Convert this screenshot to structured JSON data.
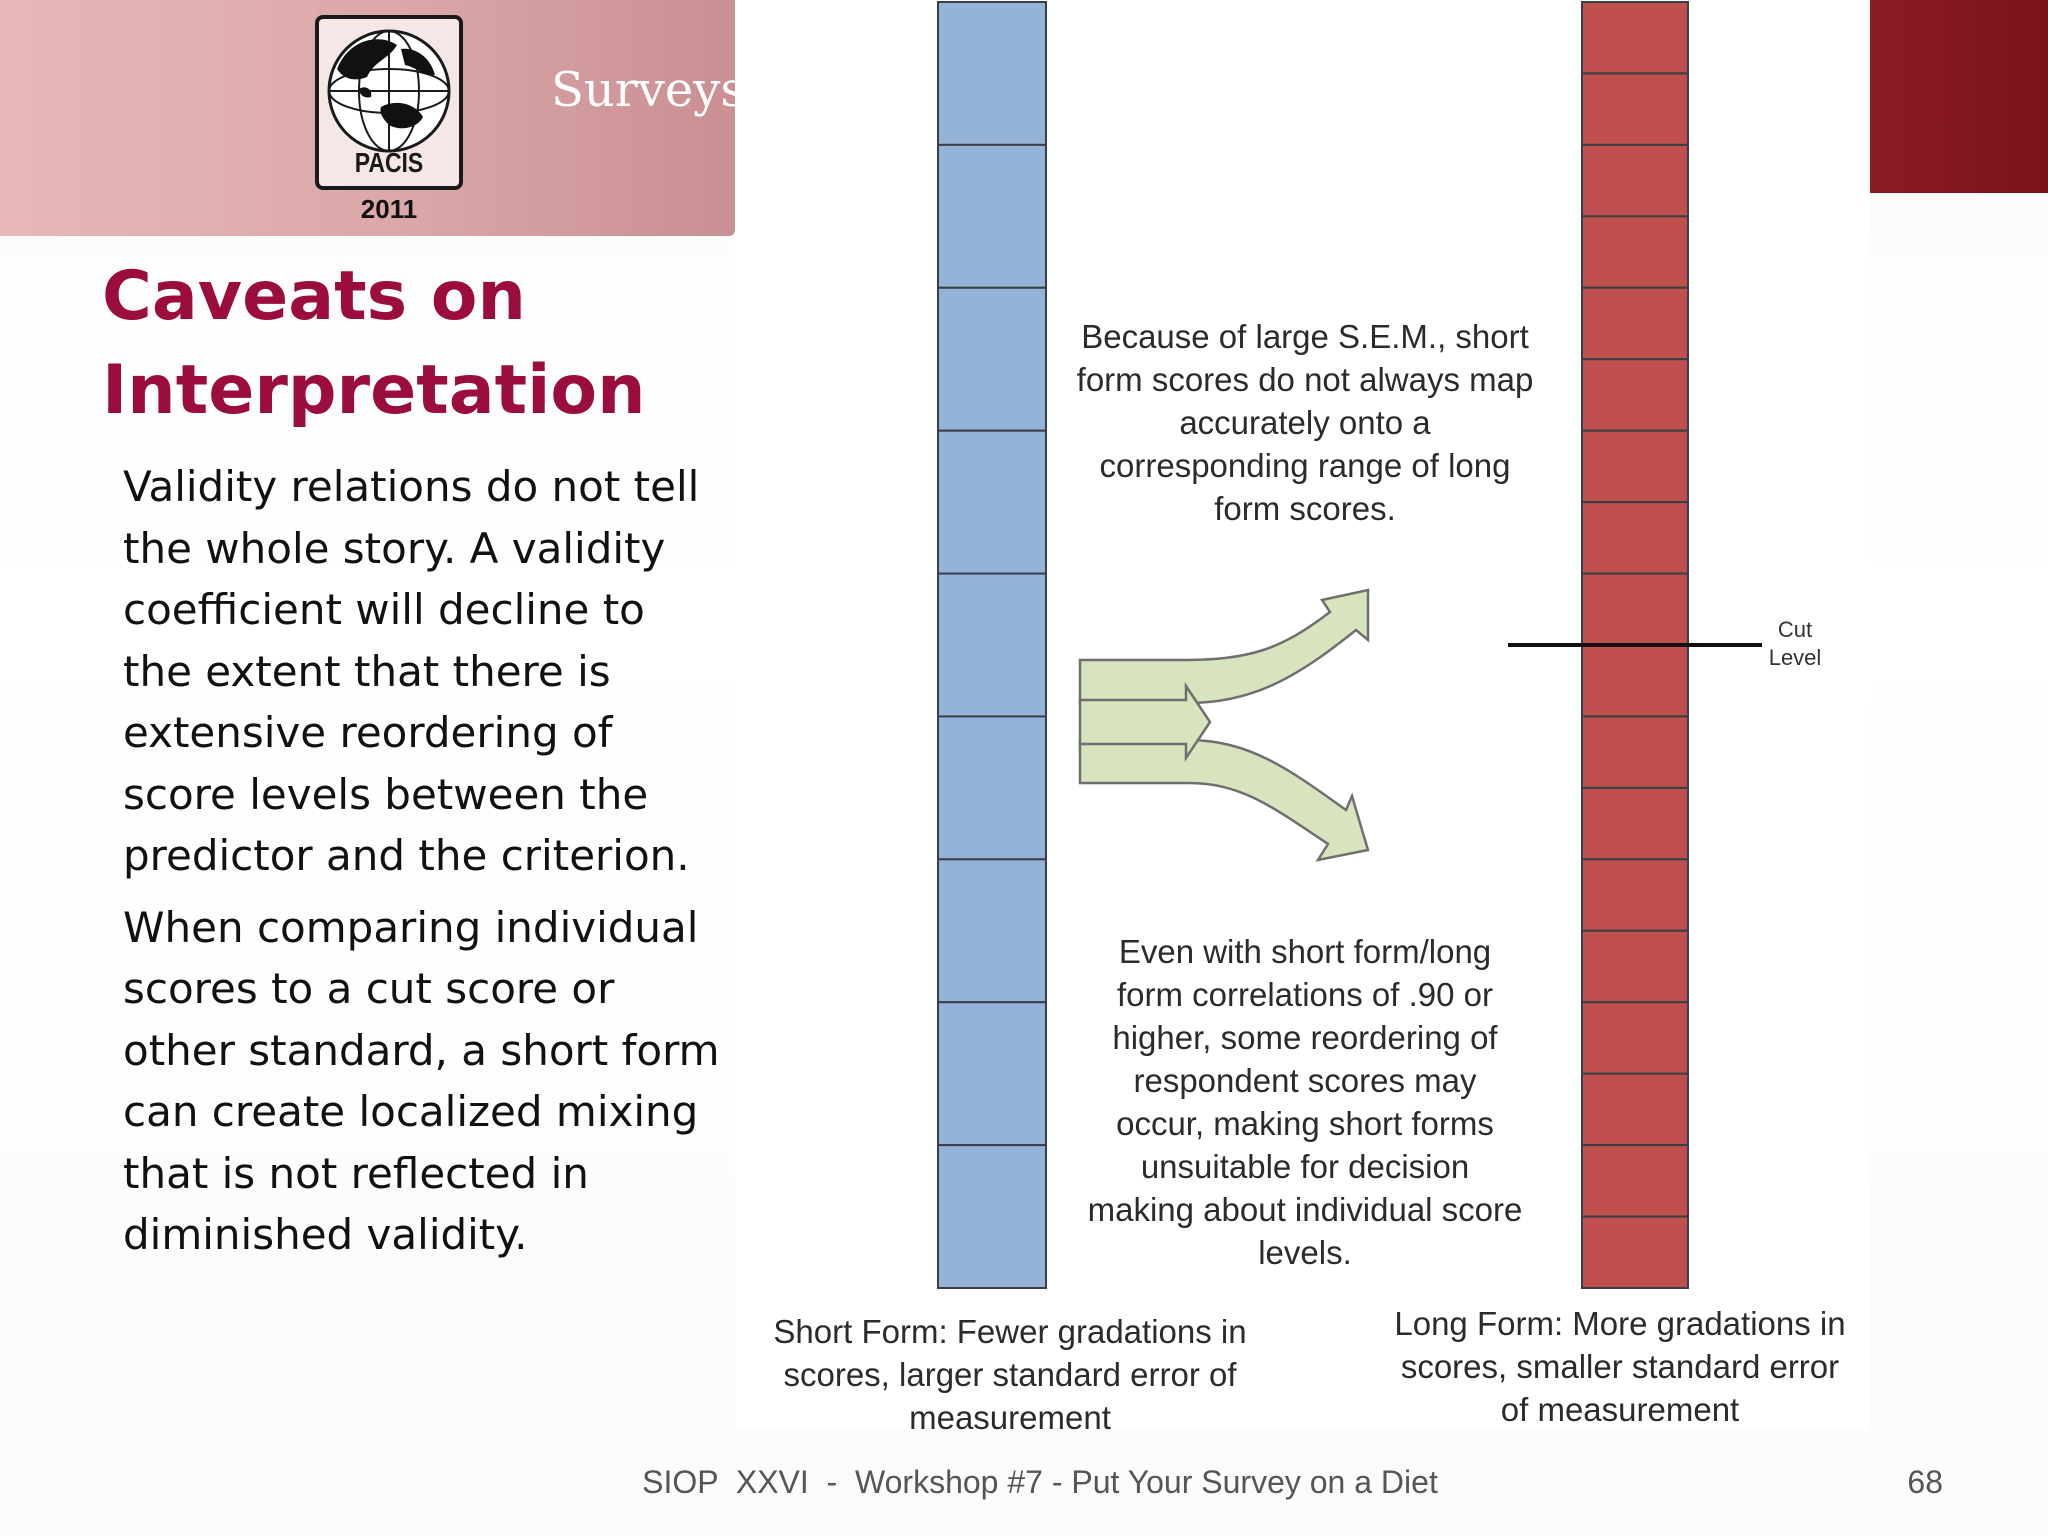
{
  "header": {
    "logo_text": "PACIS",
    "logo_year": "2011",
    "word": "Surveys,",
    "band_color": "#dba7a9",
    "accent_color": "#7c1219"
  },
  "title": {
    "line1": "Caveats on",
    "line2": "Interpretation",
    "color": "#9b0d3f"
  },
  "body": {
    "paragraphs": [
      "Validity relations do not tell the whole story. A validity coefficient will decline to the extent that there is extensive reordering of score levels between the predictor and the criterion.",
      "When comparing individual scores to a cut score or other standard, a short form can create localized mixing that is not reflected in diminished validity."
    ]
  },
  "diagram": {
    "short_form_color": "#95b3d7",
    "long_form_color": "#c0504d",
    "arrow_color": "#d7e4bd",
    "short_form_segments": 9,
    "long_form_segments": 18,
    "callout_top": "Because of large S.E.M., short form scores do not always map accurately onto a corresponding range of long form scores.",
    "callout_bottom": "Even with short form/long form correlations of .90 or higher, some reordering of respondent scores may occur, making short forms unsuitable for decision making about individual score levels.",
    "cut_label_line1": "Cut",
    "cut_label_line2": "Level",
    "caption_short": "Short Form: Fewer gradations in scores, larger standard error of measurement",
    "caption_long": "Long Form: More gradations in scores, smaller standard error of measurement"
  },
  "footer": {
    "text": "SIOP  XXVI  -  Workshop #7 - Put Your Survey on a Diet",
    "page_number": "68"
  }
}
